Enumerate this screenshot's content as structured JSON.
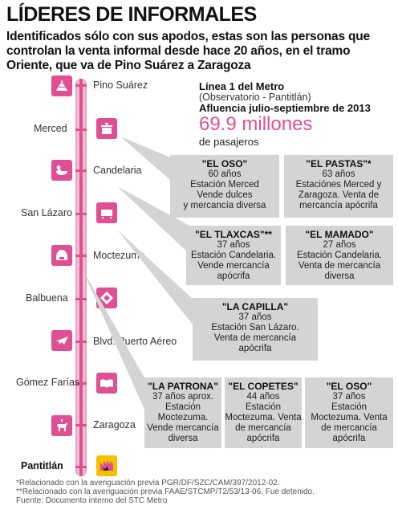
{
  "header": {
    "title": "LÍDERES DE INFORMALES",
    "subtitle": "Identificados sólo con sus apodos, estas son las personas que controlan la venta informal desde hace 20 años, en el tramo Oriente, que va de Pino Suárez a Zaragoza"
  },
  "stations": [
    {
      "name": "Pino Suárez",
      "icon": "aztec-pyramid-icon"
    },
    {
      "name": "Merced",
      "icon": "market-stall-icon"
    },
    {
      "name": "Candelaria",
      "icon": "duck-icon"
    },
    {
      "name": "San Lázaro",
      "icon": "train-icon"
    },
    {
      "name": "Moctezuma",
      "icon": "feather-headdress-icon"
    },
    {
      "name": "Balbuena",
      "icon": "diamond-pattern-icon"
    },
    {
      "name": "Blvd. Puerto Aéreo",
      "icon": "airplane-icon"
    },
    {
      "name": "Gómez Farías",
      "icon": "book-icon"
    },
    {
      "name": "Zaragoza",
      "icon": "horse-rider-icon"
    },
    {
      "name": "Pantitlán",
      "icon": "pantitlan-icon"
    }
  ],
  "metro": {
    "line": "Línea 1 del Metro",
    "route": "(Observatorio - Pantitlán)",
    "afluencia": "Afluencia julio-septiembre de 2013",
    "total": "69.9 millones",
    "unit": "de pasajeros"
  },
  "leaders": [
    {
      "name": "\"EL OSO\"",
      "age": "60 años",
      "l1": "Estación Merced",
      "l2": "Vende dulces",
      "l3": "y mercancía diversa",
      "l4": ""
    },
    {
      "name": "\"EL PASTAS\"*",
      "age": "63 años",
      "l1": "Estaciónes Merced y",
      "l2": "Zaragoza. Venta de",
      "l3": "mercancía apócrifa",
      "l4": ""
    },
    {
      "name": "\"EL TLAXCAS\"**",
      "age": "37 años",
      "l1": "Estación Candelaria.",
      "l2": "Vende mercancía",
      "l3": "apócrifa",
      "l4": ""
    },
    {
      "name": "\"EL MAMADO\"",
      "age": "27 años",
      "l1": "Estación Candelaria.",
      "l2": "Venta de mercancía",
      "l3": "diversa",
      "l4": ""
    },
    {
      "name": "\"LA CAPILLA\"",
      "age": "37 años",
      "l1": "Estación San Lázaro.",
      "l2": "Venta de mercancía",
      "l3": "apócrifa",
      "l4": ""
    },
    {
      "name": "\"LA PATRONA\"",
      "age": "37 años aprox.",
      "l1": "Estación",
      "l2": "Moctezuma.",
      "l3": "Vende mercancía",
      "l4": "diversa"
    },
    {
      "name": "\"EL COPETES\"",
      "age": "44 años",
      "l1": "Estación",
      "l2": "Moctezuma. Venta",
      "l3": "de mercancía",
      "l4": "apócrifa"
    },
    {
      "name": "\"EL OSO\"",
      "age": "37 años",
      "l1": "Estación",
      "l2": "Moctezuma. Venta",
      "l3": "de mercancía",
      "l4": "apócrifa"
    }
  ],
  "notes": {
    "n1": "*Relacionado con la averiguación previa PGR/DF/SZC/CAM/397/2012-02.",
    "n2": "**Relacionado con la averiguación previa FAAE/STCMP/T2/53/13-06. Fue detenido.",
    "n3": "Fuente: Documento interno del STC Metro"
  },
  "colors": {
    "accent": "#e04f93",
    "line_light": "#f3c1d7",
    "box": "#d4d4d4"
  }
}
